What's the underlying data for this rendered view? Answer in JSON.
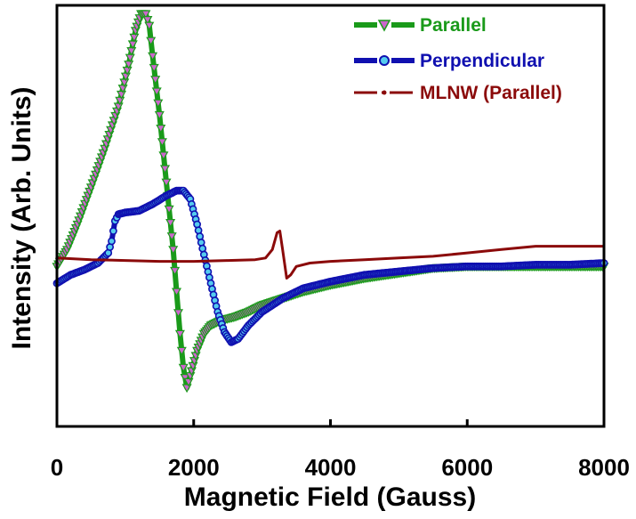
{
  "chart_data": {
    "type": "line",
    "title": "",
    "xlabel": "Magnetic Field (Gauss)",
    "ylabel": "Intensity (Arb. Units)",
    "xlim": [
      0,
      8000
    ],
    "ylim": [
      -1.0,
      1.5
    ],
    "x_ticks": [
      "0",
      "2000",
      "4000",
      "6000",
      "8000"
    ],
    "x_tick_values": [
      0,
      2000,
      4000,
      6000,
      8000
    ],
    "y_ticks_shown": false,
    "grid": false,
    "legend_position": "top-right",
    "series": [
      {
        "name": "Parallel",
        "color": "#1a9a1a",
        "marker_color": "#cc66cc",
        "marker": "triangle-down",
        "points": [
          [
            0,
            -0.05
          ],
          [
            150,
            0.05
          ],
          [
            300,
            0.2
          ],
          [
            500,
            0.42
          ],
          [
            700,
            0.65
          ],
          [
            900,
            0.9
          ],
          [
            1050,
            1.15
          ],
          [
            1150,
            1.35
          ],
          [
            1230,
            1.45
          ],
          [
            1300,
            1.45
          ],
          [
            1350,
            1.38
          ],
          [
            1400,
            1.2
          ],
          [
            1500,
            0.85
          ],
          [
            1600,
            0.45
          ],
          [
            1700,
            0.05
          ],
          [
            1750,
            -0.2
          ],
          [
            1800,
            -0.45
          ],
          [
            1850,
            -0.65
          ],
          [
            1900,
            -0.77
          ],
          [
            1950,
            -0.7
          ],
          [
            2050,
            -0.55
          ],
          [
            2150,
            -0.45
          ],
          [
            2250,
            -0.4
          ],
          [
            2400,
            -0.37
          ],
          [
            2600,
            -0.35
          ],
          [
            2800,
            -0.32
          ],
          [
            3000,
            -0.28
          ],
          [
            3300,
            -0.24
          ],
          [
            3600,
            -0.2
          ],
          [
            4000,
            -0.16
          ],
          [
            4500,
            -0.12
          ],
          [
            5000,
            -0.09
          ],
          [
            5500,
            -0.06
          ],
          [
            6000,
            -0.05
          ],
          [
            6500,
            -0.05
          ],
          [
            7000,
            -0.05
          ],
          [
            7500,
            -0.05
          ],
          [
            8000,
            -0.05
          ]
        ]
      },
      {
        "name": "Perpendicular",
        "color": "#1010b0",
        "marker_color": "#55ccee",
        "marker": "circle",
        "points": [
          [
            0,
            -0.15
          ],
          [
            200,
            -0.1
          ],
          [
            400,
            -0.07
          ],
          [
            600,
            -0.03
          ],
          [
            750,
            0.03
          ],
          [
            800,
            0.1
          ],
          [
            850,
            0.22
          ],
          [
            900,
            0.26
          ],
          [
            1000,
            0.27
          ],
          [
            1200,
            0.28
          ],
          [
            1400,
            0.32
          ],
          [
            1600,
            0.37
          ],
          [
            1750,
            0.4
          ],
          [
            1850,
            0.4
          ],
          [
            1950,
            0.35
          ],
          [
            2050,
            0.2
          ],
          [
            2150,
            0.02
          ],
          [
            2250,
            -0.15
          ],
          [
            2350,
            -0.32
          ],
          [
            2450,
            -0.44
          ],
          [
            2550,
            -0.5
          ],
          [
            2650,
            -0.48
          ],
          [
            2800,
            -0.4
          ],
          [
            3000,
            -0.32
          ],
          [
            3300,
            -0.24
          ],
          [
            3600,
            -0.18
          ],
          [
            4000,
            -0.14
          ],
          [
            4500,
            -0.1
          ],
          [
            5000,
            -0.08
          ],
          [
            5500,
            -0.06
          ],
          [
            6000,
            -0.05
          ],
          [
            6500,
            -0.05
          ],
          [
            7000,
            -0.04
          ],
          [
            7500,
            -0.04
          ],
          [
            8000,
            -0.03
          ]
        ]
      },
      {
        "name": "MLNW (Parallel)",
        "color": "#8b0a0a",
        "marker": "line",
        "points": [
          [
            0,
            0.0
          ],
          [
            500,
            -0.01
          ],
          [
            1000,
            -0.015
          ],
          [
            1500,
            -0.02
          ],
          [
            2000,
            -0.02
          ],
          [
            2500,
            -0.015
          ],
          [
            2900,
            -0.01
          ],
          [
            3050,
            0.0
          ],
          [
            3150,
            0.05
          ],
          [
            3220,
            0.15
          ],
          [
            3260,
            0.16
          ],
          [
            3300,
            0.05
          ],
          [
            3360,
            -0.12
          ],
          [
            3420,
            -0.1
          ],
          [
            3500,
            -0.05
          ],
          [
            3700,
            -0.03
          ],
          [
            4000,
            -0.02
          ],
          [
            4500,
            -0.01
          ],
          [
            5000,
            0.0
          ],
          [
            5500,
            0.01
          ],
          [
            6000,
            0.03
          ],
          [
            6500,
            0.05
          ],
          [
            7000,
            0.07
          ],
          [
            7500,
            0.07
          ],
          [
            8000,
            0.07
          ]
        ]
      }
    ]
  }
}
